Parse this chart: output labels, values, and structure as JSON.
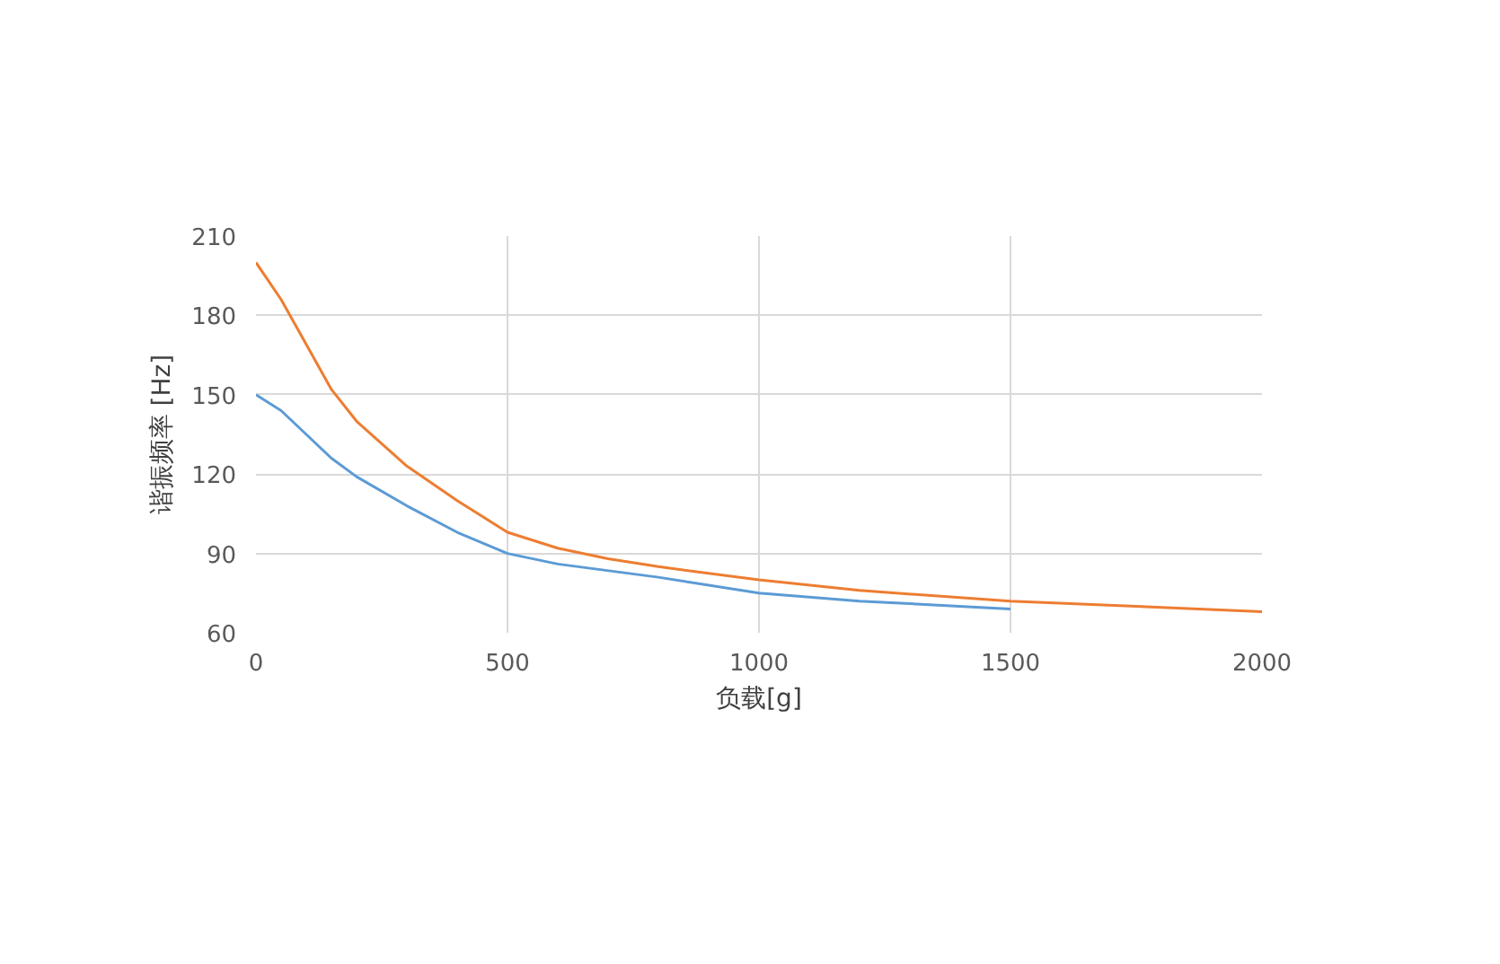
{
  "chart_data": {
    "type": "line",
    "xlabel": "负载[g]",
    "ylabel": "谐振频率 [Hz]",
    "xlim": [
      0,
      2000
    ],
    "xticks": [
      0,
      500,
      1000,
      1500,
      2000
    ],
    "ylim": [
      60,
      210
    ],
    "yticks": [
      60,
      90,
      120,
      150,
      180,
      210
    ],
    "grid": true,
    "line_style": "solid",
    "series": [
      {
        "color": "#ed7d31",
        "x": [
          0,
          50,
          100,
          150,
          200,
          300,
          400,
          500,
          600,
          700,
          800,
          1000,
          1200,
          1500,
          1750,
          2000
        ],
        "values": [
          200,
          186,
          169,
          152,
          140,
          123,
          110,
          98,
          92,
          88,
          85,
          80,
          76,
          72,
          70,
          68
        ]
      },
      {
        "color": "#5b9bd5",
        "x": [
          0,
          50,
          100,
          150,
          200,
          300,
          400,
          500,
          600,
          800,
          1000,
          1200,
          1500
        ],
        "values": [
          150,
          144,
          135,
          126,
          119,
          108,
          98,
          90,
          86,
          81,
          75,
          72,
          69
        ]
      }
    ]
  }
}
